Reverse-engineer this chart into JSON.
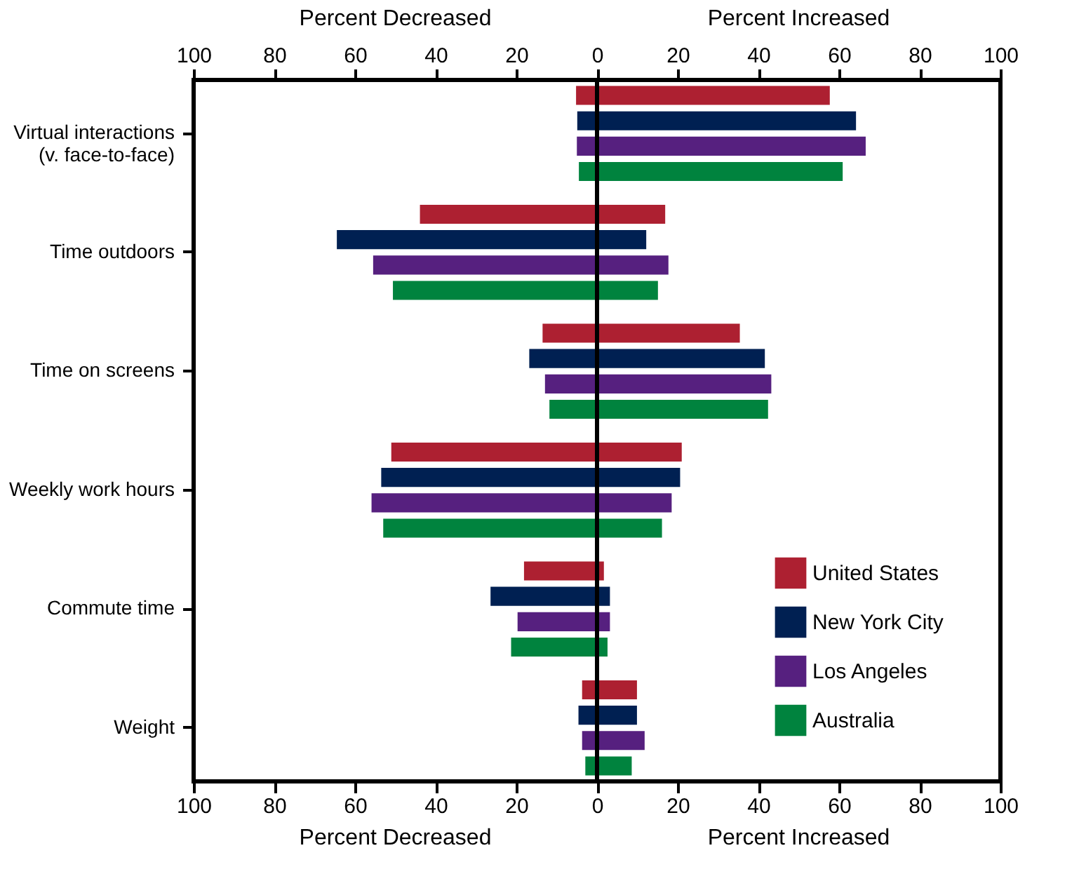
{
  "chart_data": {
    "type": "bar",
    "orientation": "horizontal",
    "categories": [
      "Virtual interactions\n(v. face-to-face)",
      "Time outdoors",
      "Time on screens",
      "Weekly work hours",
      "Commute time",
      "Weight"
    ],
    "series": [
      {
        "name": "United States",
        "color": "#ad2031",
        "base": [
          -5.2,
          -43.9,
          -13.5,
          -51.0,
          -18.1,
          -3.7
        ],
        "values": [
          62.9,
          60.8,
          48.9,
          72.0,
          19.8,
          13.6
        ]
      },
      {
        "name": "New York City",
        "color": "#002052",
        "base": [
          -4.9,
          -64.5,
          -16.8,
          -53.5,
          -26.4,
          -4.6
        ],
        "values": [
          69.1,
          76.7,
          58.4,
          74.1,
          29.6,
          14.5
        ]
      },
      {
        "name": "Los Angeles",
        "color": "#56207f",
        "base": [
          -5.0,
          -55.5,
          -12.9,
          -55.9,
          -19.7,
          -3.7
        ],
        "values": [
          71.6,
          73.2,
          56.1,
          74.4,
          22.9,
          15.5
        ]
      },
      {
        "name": "Australia",
        "color": "#00833e",
        "base": [
          -4.5,
          -50.6,
          -11.8,
          -53.0,
          -21.3,
          -2.9
        ],
        "values": [
          65.4,
          65.7,
          54.2,
          69.1,
          23.9,
          11.5
        ]
      }
    ],
    "xlim": [
      -100,
      100
    ],
    "xticks": [
      {
        "value": -100,
        "label": "100"
      },
      {
        "value": -80,
        "label": "80"
      },
      {
        "value": -60,
        "label": "60"
      },
      {
        "value": -40,
        "label": "40"
      },
      {
        "value": -20,
        "label": "20"
      },
      0,
      20,
      40,
      60,
      80,
      100
    ],
    "x2lim": [
      -100,
      100
    ],
    "x2ticks": [
      {
        "value": -100,
        "label": "100"
      },
      {
        "value": -80,
        "label": "80"
      },
      {
        "value": -60,
        "label": "60"
      },
      {
        "value": -40,
        "label": "40"
      },
      {
        "value": -20,
        "label": "20"
      },
      0,
      20,
      40,
      60,
      80,
      100
    ],
    "annotations": [
      "Percent Decreased",
      "Percent Increased"
    ],
    "ref_lines": [
      {
        "axis": "x",
        "value": 0,
        "color": "#000000"
      }
    ],
    "grid": false,
    "legend": "bottom right"
  }
}
